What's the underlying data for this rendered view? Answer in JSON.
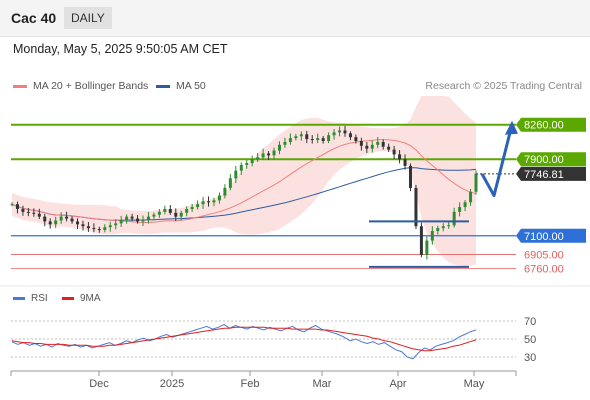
{
  "header": {
    "title": "Cac 40",
    "period": "DAILY"
  },
  "timestamp": "Monday, May 5, 2025 9:50:05 AM CET",
  "legend": [
    {
      "label": "MA 20 + Bollinger Bands",
      "color": "#f08080"
    },
    {
      "label": "MA 50",
      "color": "#2e5c9e"
    }
  ],
  "copyright": "Research © 2025 Trading Central",
  "rsi_legend": [
    {
      "label": "RSI",
      "color": "#4a78d6"
    },
    {
      "label": "9MA",
      "color": "#e02020"
    }
  ],
  "colors": {
    "up": "#2e8b2e",
    "down": "#333333",
    "resistance": "#5aa800",
    "support": "#2f6fd8",
    "low_level": "#e06060",
    "arrow": "#2a62b8",
    "band": "#fbdada",
    "ma20": "#f08080",
    "ma50": "#2e5c9e",
    "rsi": "#4a78d6",
    "rsi_ma": "#e02020"
  },
  "chart_data": [
    {
      "type": "candlestick",
      "ylim": [
        6680,
        8560
      ],
      "x_ticks": [
        "Dec",
        "2025",
        "Feb",
        "Mar",
        "Apr",
        "May"
      ],
      "levels": [
        {
          "label": "8260.00",
          "value": 8260,
          "kind": "resistance"
        },
        {
          "label": "7900.00",
          "value": 7900,
          "kind": "resistance"
        },
        {
          "label": "7100.00",
          "value": 7100,
          "kind": "support"
        },
        {
          "label": "6905.00",
          "value": 6905,
          "kind": "low"
        },
        {
          "label": "6760.00",
          "value": 6760,
          "kind": "low"
        }
      ],
      "last_price": {
        "label": "7746.81",
        "value": 7746.81
      },
      "projection": [
        7746.81,
        7520,
        8260
      ],
      "close": [
        7430,
        7380,
        7350,
        7340,
        7330,
        7300,
        7250,
        7220,
        7260,
        7300,
        7280,
        7250,
        7220,
        7200,
        7180,
        7170,
        7160,
        7190,
        7210,
        7230,
        7260,
        7300,
        7280,
        7250,
        7270,
        7300,
        7320,
        7350,
        7380,
        7340,
        7300,
        7340,
        7380,
        7400,
        7430,
        7460,
        7450,
        7470,
        7520,
        7600,
        7700,
        7780,
        7840,
        7860,
        7900,
        7920,
        7960,
        7940,
        7990,
        8050,
        8080,
        8120,
        8140,
        8160,
        8110,
        8100,
        8120,
        8090,
        8150,
        8180,
        8200,
        8170,
        8130,
        8090,
        8040,
        8010,
        8050,
        8080,
        8030,
        8000,
        7950,
        7900,
        7830,
        7600,
        7200,
        6900,
        7050,
        7150,
        7180,
        7200,
        7210,
        7350,
        7400,
        7450,
        7560,
        7746.81
      ]
    },
    {
      "type": "line",
      "title": "RSI",
      "ylim": [
        20,
        80
      ],
      "y_ticks": [
        70,
        50,
        30
      ],
      "series": [
        {
          "name": "RSI",
          "values": [
            47,
            44,
            46,
            43,
            45,
            42,
            44,
            41,
            45,
            43,
            42,
            44,
            41,
            43,
            40,
            42,
            44,
            46,
            43,
            45,
            48,
            46,
            49,
            51,
            48,
            50,
            53,
            55,
            52,
            54,
            56,
            58,
            60,
            62,
            64,
            61,
            63,
            66,
            62,
            65,
            63,
            61,
            64,
            62,
            60,
            63,
            61,
            59,
            62,
            64,
            60,
            58,
            62,
            65,
            61,
            59,
            57,
            55,
            52,
            48,
            50,
            47,
            45,
            47,
            44,
            46,
            42,
            38,
            36,
            30,
            28,
            35,
            40,
            38,
            42,
            44,
            46,
            48,
            52,
            55,
            58,
            60
          ]
        },
        {
          "name": "9MA",
          "values": [
            48,
            47,
            46,
            46,
            45,
            45,
            44,
            44,
            44,
            44,
            43,
            43,
            43,
            43,
            42,
            42,
            42,
            43,
            43,
            44,
            45,
            46,
            47,
            48,
            49,
            50,
            51,
            52,
            53,
            54,
            55,
            56,
            57,
            58,
            59,
            60,
            61,
            62,
            62,
            63,
            63,
            63,
            63,
            63,
            63,
            62,
            62,
            62,
            62,
            61,
            61,
            61,
            61,
            61,
            60,
            60,
            59,
            58,
            57,
            56,
            55,
            54,
            53,
            51,
            50,
            48,
            47,
            45,
            43,
            41,
            39,
            38,
            37,
            37,
            38,
            39,
            40,
            42,
            43,
            45,
            47,
            49
          ]
        }
      ]
    }
  ]
}
